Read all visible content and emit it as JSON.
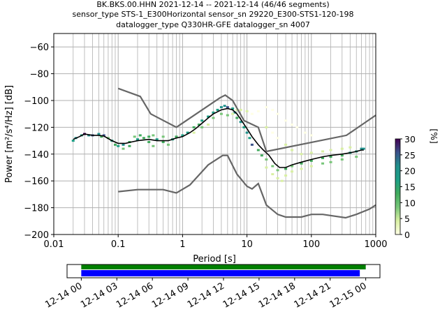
{
  "header": {
    "line1": "BK.BKS.00.HHN   2021-12-14 -- 2021-12-14  (46/46 segments)",
    "line2": "sensor_type STS-1_E300Horizontal sensor_sn 29220_E300-STS1-120-198",
    "line3": "datalogger_type Q330HR-GFE datalogger_sn 4007"
  },
  "chart_data": [
    {
      "type": "heatmap",
      "title": "BK.BKS.00.HHN   2021-12-14 -- 2021-12-14  (46/46 segments)",
      "xlabel": "Period [s]",
      "ylabel": "Power [m²/s⁴/Hz] [dB]",
      "xscale": "log",
      "xlim": [
        0.01,
        1000
      ],
      "ylim": [
        -200,
        -50
      ],
      "x_ticks": [
        {
          "value": 0.01,
          "label": "0.01"
        },
        {
          "value": 0.1,
          "label": "0.1"
        },
        {
          "value": 1,
          "label": "1"
        },
        {
          "value": 10,
          "label": "10"
        },
        {
          "value": 100,
          "label": "100"
        },
        {
          "value": 1000,
          "label": "1000"
        }
      ],
      "y_ticks": [
        {
          "value": -60,
          "label": "−60"
        },
        {
          "value": -80,
          "label": "−80"
        },
        {
          "value": -100,
          "label": "−100"
        },
        {
          "value": -120,
          "label": "−120"
        },
        {
          "value": -140,
          "label": "−140"
        },
        {
          "value": -160,
          "label": "−160"
        },
        {
          "value": -180,
          "label": "−180"
        },
        {
          "value": -200,
          "label": "−200"
        }
      ],
      "grid": true,
      "colorbar": {
        "label": "[%]",
        "range": [
          0,
          30
        ],
        "ticks": [
          {
            "value": 0,
            "label": "0"
          },
          {
            "value": 5,
            "label": "5"
          },
          {
            "value": 10,
            "label": "10"
          },
          {
            "value": 15,
            "label": "15"
          },
          {
            "value": 20,
            "label": "20"
          },
          {
            "value": 25,
            "label": "25"
          },
          {
            "value": 30,
            "label": "30"
          }
        ],
        "colors": [
          "#ffffe5",
          "#d9f0a3",
          "#78c679",
          "#41ab5d",
          "#1d9f86",
          "#21918c",
          "#3b528b",
          "#440154"
        ]
      },
      "series": [
        {
          "style": "black-line",
          "points": [
            [
              0.02,
              -129
            ],
            [
              0.025,
              -127
            ],
            [
              0.03,
              -125
            ],
            [
              0.04,
              -126
            ],
            [
              0.05,
              -126
            ],
            [
              0.06,
              -126.5
            ],
            [
              0.08,
              -130
            ],
            [
              0.1,
              -132
            ],
            [
              0.13,
              -132
            ],
            [
              0.16,
              -131
            ],
            [
              0.2,
              -130
            ],
            [
              0.3,
              -129
            ],
            [
              0.4,
              -130
            ],
            [
              0.6,
              -130
            ],
            [
              0.8,
              -128
            ],
            [
              1,
              -127
            ],
            [
              1.3,
              -124
            ],
            [
              1.6,
              -121
            ],
            [
              2,
              -117
            ],
            [
              2.5,
              -113
            ],
            [
              3,
              -110
            ],
            [
              4,
              -107
            ],
            [
              5,
              -106
            ],
            [
              6,
              -107
            ],
            [
              7,
              -110
            ],
            [
              8,
              -114
            ],
            [
              10,
              -121
            ],
            [
              12,
              -127
            ],
            [
              15,
              -133
            ],
            [
              18,
              -137
            ],
            [
              22,
              -141
            ],
            [
              27,
              -147
            ],
            [
              32,
              -150
            ],
            [
              40,
              -150
            ],
            [
              50,
              -148
            ],
            [
              70,
              -146
            ],
            [
              100,
              -144
            ],
            [
              150,
              -142
            ],
            [
              200,
              -141
            ],
            [
              300,
              -140
            ],
            [
              400,
              -139
            ],
            [
              500,
              -138
            ],
            [
              600,
              -137
            ],
            [
              650,
              -137
            ]
          ]
        },
        {
          "style": "gray-line",
          "points": [
            [
              0.1,
              -91
            ],
            [
              0.22,
              -97
            ],
            [
              0.32,
              -110
            ],
            [
              0.8,
              -120
            ],
            [
              3.8,
              -98
            ],
            [
              4.6,
              -96
            ],
            [
              6,
              -100
            ],
            [
              9,
              -115
            ],
            [
              15,
              -120
            ],
            [
              20,
              -138
            ],
            [
              350,
              -126
            ],
            [
              1000,
              -111
            ]
          ]
        },
        {
          "style": "gray-line",
          "points": [
            [
              0.1,
              -168
            ],
            [
              0.2,
              -166.5
            ],
            [
              0.5,
              -166.5
            ],
            [
              0.8,
              -169
            ],
            [
              1.3,
              -163
            ],
            [
              2.5,
              -148
            ],
            [
              4.2,
              -141
            ],
            [
              5,
              -141
            ],
            [
              7,
              -155
            ],
            [
              10,
              -164
            ],
            [
              12,
              -166
            ],
            [
              15,
              -162
            ],
            [
              20,
              -178
            ],
            [
              30,
              -185
            ],
            [
              40,
              -187
            ],
            [
              70,
              -187
            ],
            [
              100,
              -185
            ],
            [
              150,
              -185
            ],
            [
              340,
              -187.5
            ],
            [
              500,
              -185
            ],
            [
              800,
              -181
            ],
            [
              1000,
              -178
            ]
          ]
        }
      ],
      "heatmap_cells": [
        [
          0.02,
          -130,
          18
        ],
        [
          0.022,
          -128,
          22
        ],
        [
          0.027,
          -126,
          15
        ],
        [
          0.03,
          -125,
          28
        ],
        [
          0.035,
          -126,
          20
        ],
        [
          0.04,
          -126,
          24
        ],
        [
          0.05,
          -125,
          22
        ],
        [
          0.055,
          -127,
          14
        ],
        [
          0.06,
          -126,
          25
        ],
        [
          0.07,
          -128,
          10
        ],
        [
          0.08,
          -130,
          18
        ],
        [
          0.09,
          -133,
          12
        ],
        [
          0.1,
          -134,
          18
        ],
        [
          0.12,
          -133,
          20
        ],
        [
          0.12,
          -136,
          8
        ],
        [
          0.15,
          -131,
          14
        ],
        [
          0.15,
          -134,
          12
        ],
        [
          0.18,
          -127,
          9
        ],
        [
          0.2,
          -129,
          16
        ],
        [
          0.22,
          -126,
          12
        ],
        [
          0.25,
          -128,
          14
        ],
        [
          0.3,
          -127,
          12
        ],
        [
          0.3,
          -131,
          11
        ],
        [
          0.35,
          -126,
          10
        ],
        [
          0.35,
          -134,
          8
        ],
        [
          0.4,
          -129,
          15
        ],
        [
          0.5,
          -131,
          13
        ],
        [
          0.5,
          -127,
          9
        ],
        [
          0.6,
          -133,
          10
        ],
        [
          0.7,
          -129,
          16
        ],
        [
          0.8,
          -127,
          14
        ],
        [
          1,
          -126,
          18
        ],
        [
          1.2,
          -124,
          16
        ],
        [
          1.5,
          -120,
          14
        ],
        [
          1.8,
          -118,
          12
        ],
        [
          2,
          -115,
          15
        ],
        [
          2.5,
          -112,
          16
        ],
        [
          3,
          -109,
          15
        ],
        [
          3.5,
          -107,
          18
        ],
        [
          4,
          -105,
          22
        ],
        [
          4.5,
          -104,
          20
        ],
        [
          5,
          -105,
          25
        ],
        [
          6,
          -106,
          18
        ],
        [
          6.5,
          -109,
          20
        ],
        [
          7,
          -113,
          14
        ],
        [
          8,
          -116,
          22
        ],
        [
          9,
          -120,
          18
        ],
        [
          10,
          -124,
          20
        ],
        [
          11,
          -128,
          16
        ],
        [
          12,
          -133,
          24
        ],
        [
          15,
          -137,
          14
        ],
        [
          17,
          -141,
          12
        ],
        [
          20,
          -144,
          10
        ],
        [
          25,
          -149,
          9
        ],
        [
          30,
          -152,
          8
        ],
        [
          40,
          -151,
          12
        ],
        [
          50,
          -149,
          10
        ],
        [
          70,
          -147,
          11
        ],
        [
          100,
          -145,
          12
        ],
        [
          150,
          -143,
          13
        ],
        [
          200,
          -142,
          14
        ],
        [
          300,
          -141,
          14
        ],
        [
          400,
          -139,
          16
        ],
        [
          500,
          -138,
          18
        ],
        [
          600,
          -136,
          20
        ],
        [
          650,
          -136,
          22
        ],
        [
          1.5,
          -124,
          6
        ],
        [
          2,
          -120,
          8
        ],
        [
          2.5,
          -118,
          6
        ],
        [
          3,
          -113,
          7
        ],
        [
          4,
          -110,
          8
        ],
        [
          5,
          -111,
          7
        ],
        [
          6,
          -110,
          6
        ],
        [
          7,
          -107,
          4
        ],
        [
          8,
          -107,
          3
        ],
        [
          10,
          -108,
          3
        ],
        [
          12,
          -110,
          2
        ],
        [
          15,
          -108,
          2
        ],
        [
          20,
          -105,
          2
        ],
        [
          25,
          -107,
          2
        ],
        [
          30,
          -110,
          2
        ],
        [
          40,
          -115,
          2
        ],
        [
          50,
          -118,
          2
        ],
        [
          60,
          -120,
          2
        ],
        [
          80,
          -124,
          2
        ],
        [
          100,
          -126,
          2
        ],
        [
          20,
          -120,
          3
        ],
        [
          25,
          -124,
          2
        ],
        [
          30,
          -128,
          2
        ],
        [
          40,
          -133,
          3
        ],
        [
          50,
          -137,
          3
        ],
        [
          70,
          -140,
          3
        ],
        [
          100,
          -139,
          3
        ],
        [
          150,
          -138,
          3
        ],
        [
          200,
          -137,
          4
        ],
        [
          300,
          -136,
          4
        ],
        [
          400,
          -135,
          5
        ],
        [
          20,
          -150,
          5
        ],
        [
          25,
          -155,
          5
        ],
        [
          30,
          -158,
          6
        ],
        [
          35,
          -160,
          5
        ],
        [
          40,
          -156,
          5
        ],
        [
          50,
          -153,
          6
        ],
        [
          70,
          -151,
          6
        ],
        [
          100,
          -149,
          6
        ],
        [
          150,
          -147,
          7
        ],
        [
          200,
          -146,
          7
        ],
        [
          300,
          -144,
          8
        ],
        [
          500,
          -142,
          8
        ]
      ]
    },
    {
      "type": "bar",
      "title": "",
      "x_ticks": [
        {
          "value": 0,
          "label": "12-14 00"
        },
        {
          "value": 3,
          "label": "12-14 03"
        },
        {
          "value": 6,
          "label": "12-14 06"
        },
        {
          "value": 9,
          "label": "12-14 09"
        },
        {
          "value": 12,
          "label": "12-14 12"
        },
        {
          "value": 15,
          "label": "12-14 15"
        },
        {
          "value": 18,
          "label": "12-14 18"
        },
        {
          "value": 21,
          "label": "12-14 21"
        },
        {
          "value": 24,
          "label": "12-15 00"
        }
      ],
      "xlim": [
        -1.2,
        25.2
      ],
      "bars": [
        {
          "start": 0,
          "end": 24,
          "color": "#008000"
        },
        {
          "start": 0,
          "end": 23.5,
          "color": "#0000ff"
        }
      ]
    }
  ]
}
